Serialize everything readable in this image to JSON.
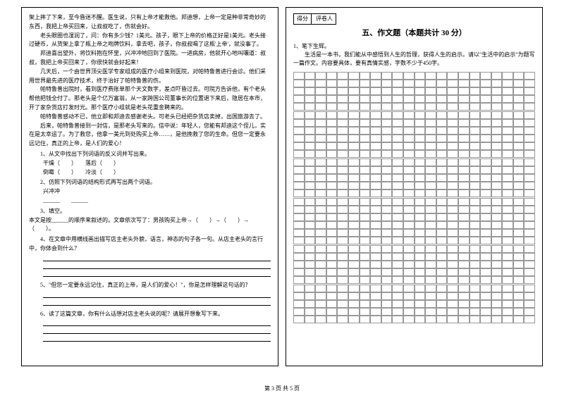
{
  "leftColumn": {
    "passage": [
      "架上摔了下来，至今昏迷不醒。医生说，只有上帝才能救他。邦迪想，上帝一定是种非常奇妙的东西，我把上帝买回来，让叔叔吃了，伤就会好。",
      "老头眼圈也湿润了，问：你有多少钱？1美元。孩子，眼下上帝的价格正好是1美元。老头接过硬币，从货架上拿了瓶上帝之吻牌饮料，拿去吧，孩子，你叔叔喝了这瓶'上帝'，就没事了。",
      "邦迪喜出望外，将饮料抱在怀里，兴冲冲地回到了医院。一进病房，他就开心地叫嚷道：叔叔，我把上帝买回来了，你很快就会好起来！",
      "几天后，一个由世界顶尖医学专家组成的医疗小组来到医院，对帕特鲁普进行会诊。他们采用世界最先进的医疗技术，终于治好了帕特鲁普的伤。",
      "帕特鲁普出院时，看到医疗费账单那个天文数字，差点吓昏过去。可院方告诉他，有个老头帮他把钱全付了。那老头是个亿万富翁，从一家跨国公司董事长的位置退下来后，隐居在本市，开了家杂货店打发时光。那个医疗小组就是老头花重金聘来的。",
      "帕特鲁普感动不已，他立即和邦迪去感谢老头。可老头已经把杂货店卖掉，出国旅游去了。",
      "后来，帕特鲁普接到一封信，是那老头写来的。信中说：年轻人，您能有邦迪这个侄儿，实在是太幸运了。为了救您，他拿一美元到处购买上帝……，是他挽救了您的生命。但您一定要永远记住，真正的上帝，是人们的爱心！"
    ],
    "q1": {
      "label": "1、从文中找出下列词语的反义词并写出来。",
      "pairs": [
        {
          "a": "干燥（　　）",
          "b": "落后（　　）"
        },
        {
          "a": "倒霉（　　）",
          "b": "冷淡（　　）"
        }
      ]
    },
    "q2": {
      "label": "2、仿照下列词语的结构形式再写出两个词语。",
      "word": "兴冲冲"
    },
    "q3": {
      "label": "3、填空。",
      "text": "本文是按______的顺序来叙述的。文章依次写了：男孩购买上帝→（　　）→（　　）→（　　）。"
    },
    "q4": "4、在文章中用横线画出描写店主老头外貌，语言，神态的句子各一句。从店主老头的言行中，你体会到什么？",
    "q5": "5、\"但您一定要永远记住，真正的上帝，是人们的爱心！\"，你是怎样理解这句话的？",
    "q6": "6、读了这篇文章，你有什么话想对店主老头说的呢？请展开想象写下来。"
  },
  "rightColumn": {
    "scoreLabels": {
      "score": "得分",
      "judge": "评卷人"
    },
    "sectionTitle": "五、作文题（本题共计 30 分）",
    "essay": {
      "title": "1、笔下生辉。",
      "prompt": "生活是一本书，我们能从中感悟到人生的哲理，获得人生的启示。请以\"生活中的启示\"为题写一篇作文。内容要具体，要有真情实感，字数不少于450字。"
    },
    "grid": {
      "cols": 22,
      "sections": [
        5,
        6,
        5,
        6,
        5,
        5
      ]
    }
  },
  "footer": "第 3 页 共 5 页",
  "colors": {
    "bg": "#ffffff",
    "text": "#000000",
    "gridLine": "#999999"
  }
}
